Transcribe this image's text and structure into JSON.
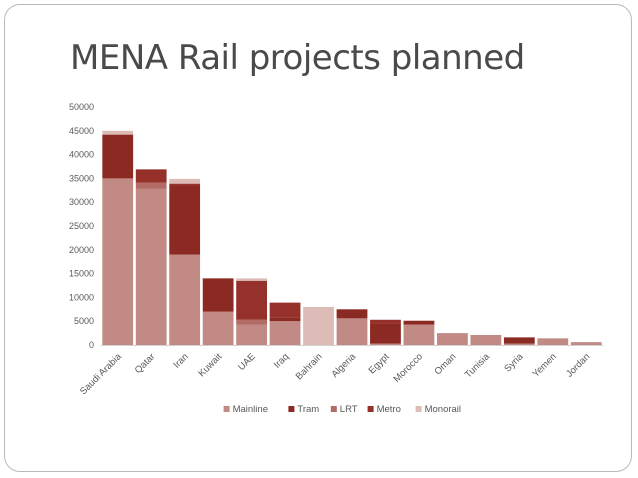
{
  "title": "MENA Rail projects planned",
  "chart_data": {
    "type": "bar",
    "stacked": true,
    "categories": [
      "Saudi Arabia",
      "Qatar",
      "Iran",
      "Kuwait",
      "UAE",
      "Iraq",
      "Bahrain",
      "Algeria",
      "Egypt",
      "Morocco",
      "Oman",
      "Tunisia",
      "Syria",
      "Yemen",
      "Jordan"
    ],
    "series": [
      {
        "name": "Mainline",
        "color": "#c28a85",
        "values": [
          35000,
          32800,
          19000,
          7000,
          4300,
          5000,
          0,
          5600,
          300,
          4300,
          2500,
          2100,
          300,
          1400,
          600
        ]
      },
      {
        "name": "Tram",
        "color": "#8b2a22",
        "values": [
          9200,
          0,
          14500,
          7000,
          0,
          700,
          0,
          1900,
          4200,
          800,
          0,
          0,
          1300,
          0,
          0
        ]
      },
      {
        "name": "LRT",
        "color": "#b36b65",
        "values": [
          0,
          1300,
          0,
          0,
          1000,
          0,
          0,
          0,
          0,
          0,
          0,
          0,
          0,
          0,
          0
        ]
      },
      {
        "name": "Metro",
        "color": "#96302a",
        "values": [
          0,
          2800,
          400,
          0,
          8200,
          3200,
          0,
          0,
          800,
          0,
          0,
          0,
          0,
          0,
          0
        ]
      },
      {
        "name": "Monorail",
        "color": "#ddbcb8",
        "values": [
          800,
          0,
          1000,
          0,
          500,
          0,
          8000,
          0,
          0,
          0,
          0,
          0,
          0,
          0,
          0
        ]
      }
    ],
    "ylim": [
      0,
      50000
    ],
    "yticks": [
      0,
      5000,
      10000,
      15000,
      20000,
      25000,
      30000,
      35000,
      40000,
      45000,
      50000
    ],
    "grid": false,
    "legend": "bottom"
  }
}
